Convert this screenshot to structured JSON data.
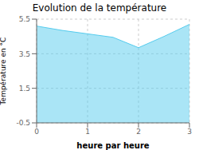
{
  "chart_data": {
    "type": "area",
    "title": "Evolution de la température",
    "xlabel": "heure par heure",
    "ylabel": "Température en °C",
    "x": [
      0,
      0.5,
      1,
      1.5,
      2,
      2.5,
      3
    ],
    "values": [
      5.1,
      4.85,
      4.65,
      4.45,
      3.85,
      4.5,
      5.2
    ],
    "color": "#55ccee",
    "xlim": [
      0,
      3
    ],
    "ylim": [
      -0.5,
      5.5
    ],
    "xticks": [
      0,
      1,
      2,
      3
    ],
    "yticks": [
      -0.5,
      1.5,
      3.5,
      5.5
    ],
    "grid": true
  }
}
